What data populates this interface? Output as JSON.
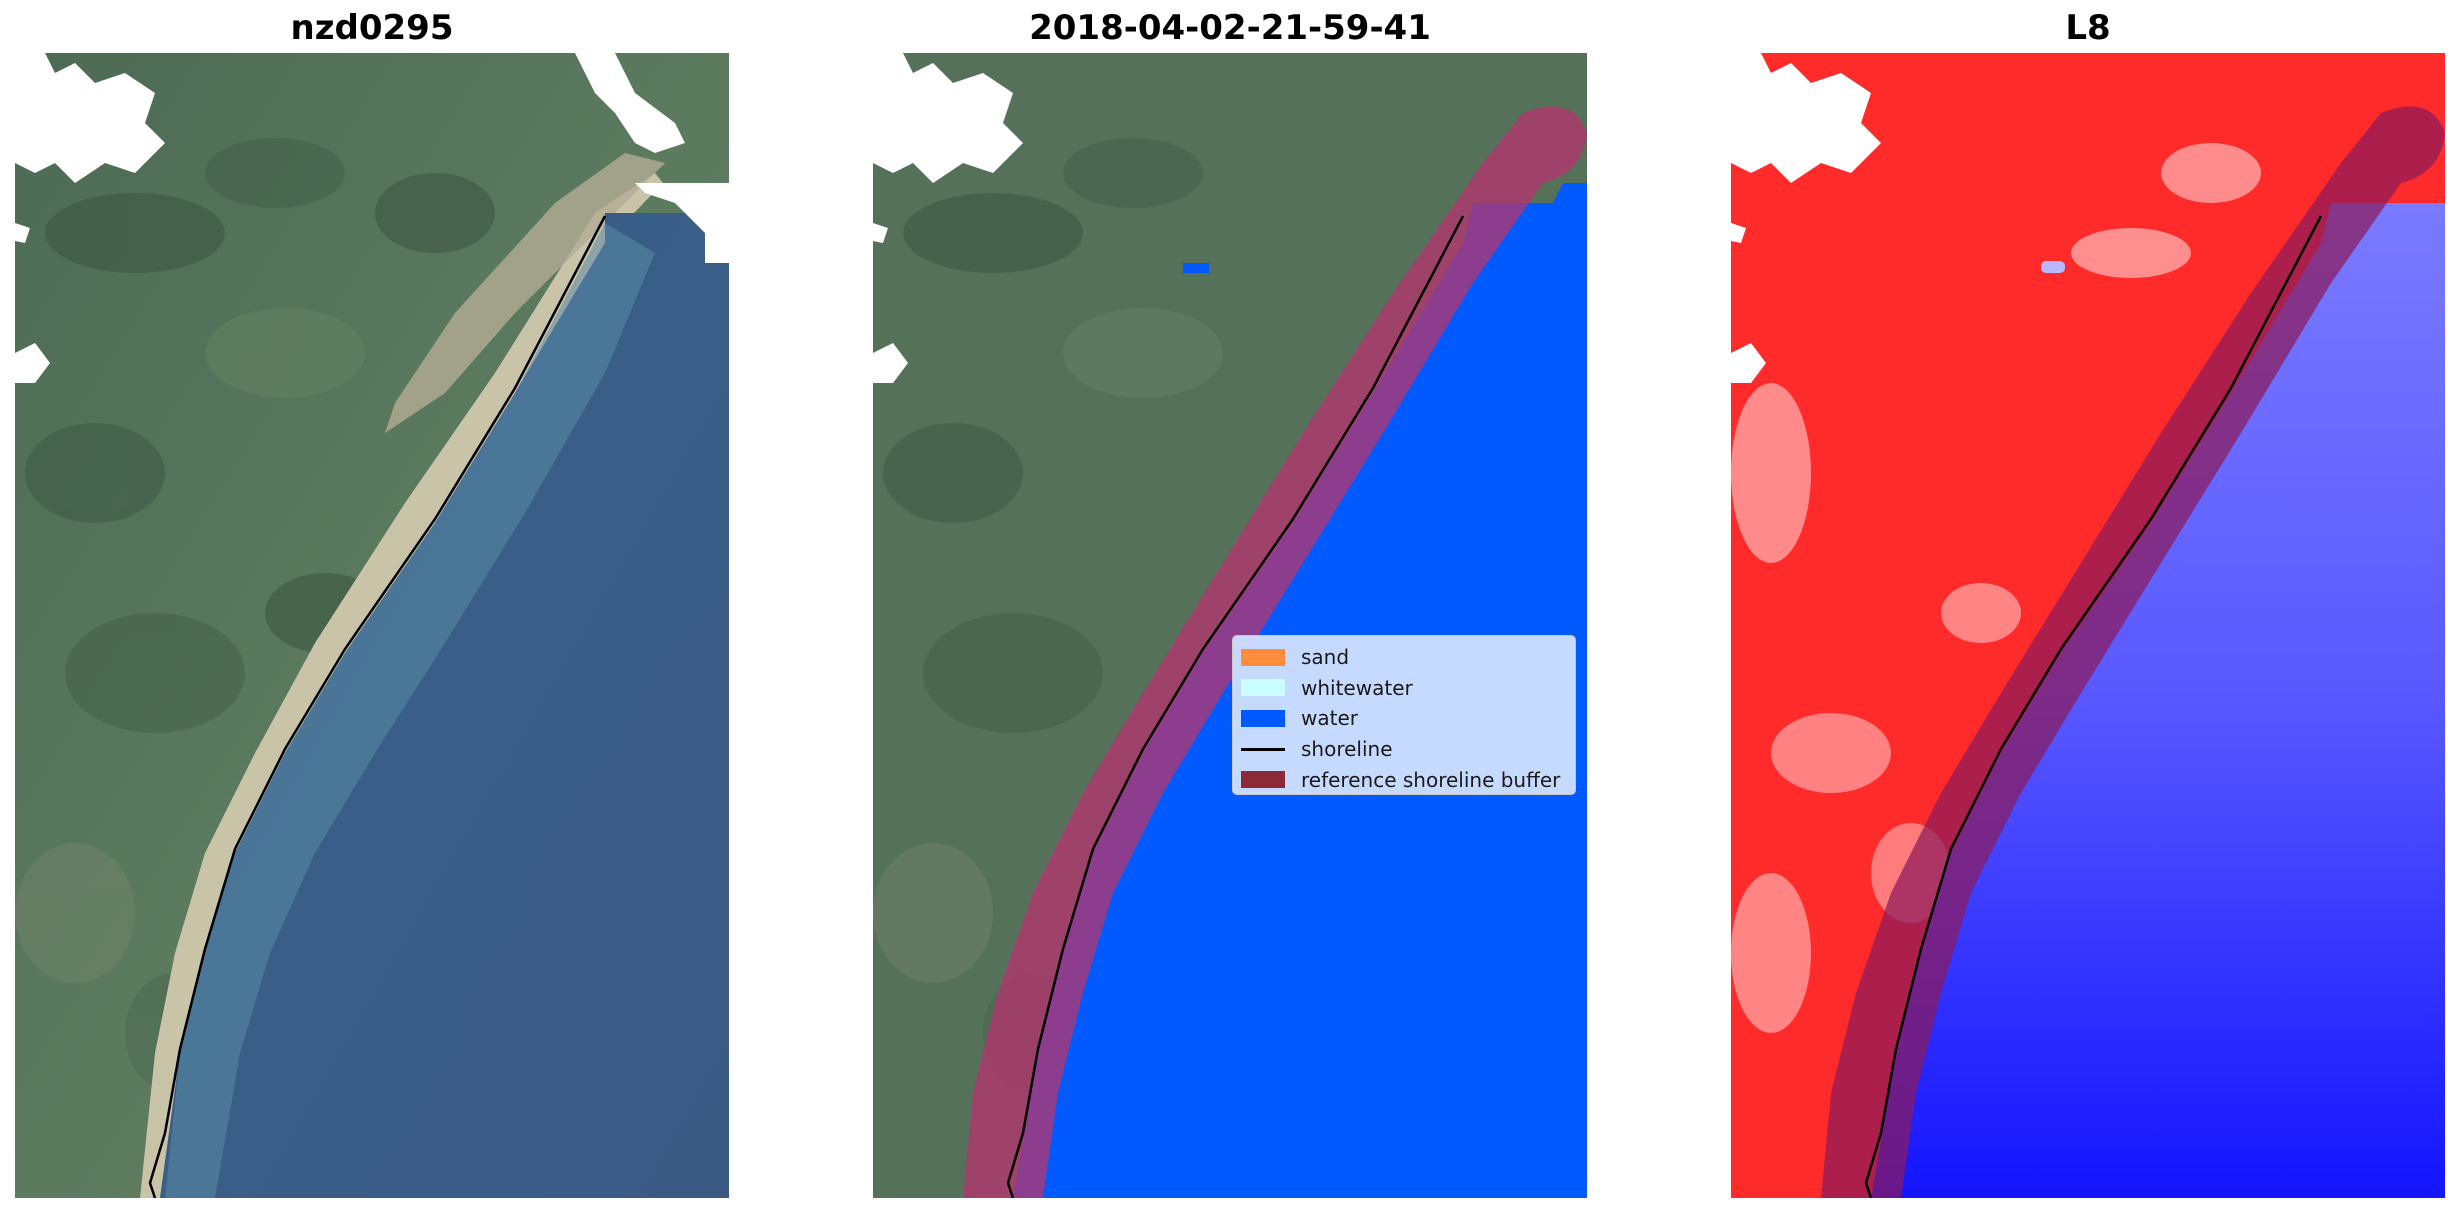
{
  "panels": [
    {
      "title": "nzd0295"
    },
    {
      "title": "2018-04-02-21-59-41"
    },
    {
      "title": "L8"
    }
  ],
  "legend": {
    "items": [
      {
        "label": "sand",
        "color": "#ff8c3c",
        "kind": "patch"
      },
      {
        "label": "whitewater",
        "color": "#c8ffff",
        "kind": "patch"
      },
      {
        "label": "water",
        "color": "#005aff",
        "kind": "patch"
      },
      {
        "label": "shoreline",
        "color": "#000000",
        "kind": "line"
      },
      {
        "label": "reference shoreline buffer",
        "color": "#8c2a38",
        "kind": "patch"
      }
    ]
  },
  "colors": {
    "land_rgb": "#56705a",
    "ocean_rgb": "#3c5f87",
    "classified_water": "#005aff",
    "buffer": "#b4346e",
    "mndwi_land": "#ff2a2a",
    "mndwi_water": "#3a3aff",
    "cloud": "#ffffff"
  }
}
